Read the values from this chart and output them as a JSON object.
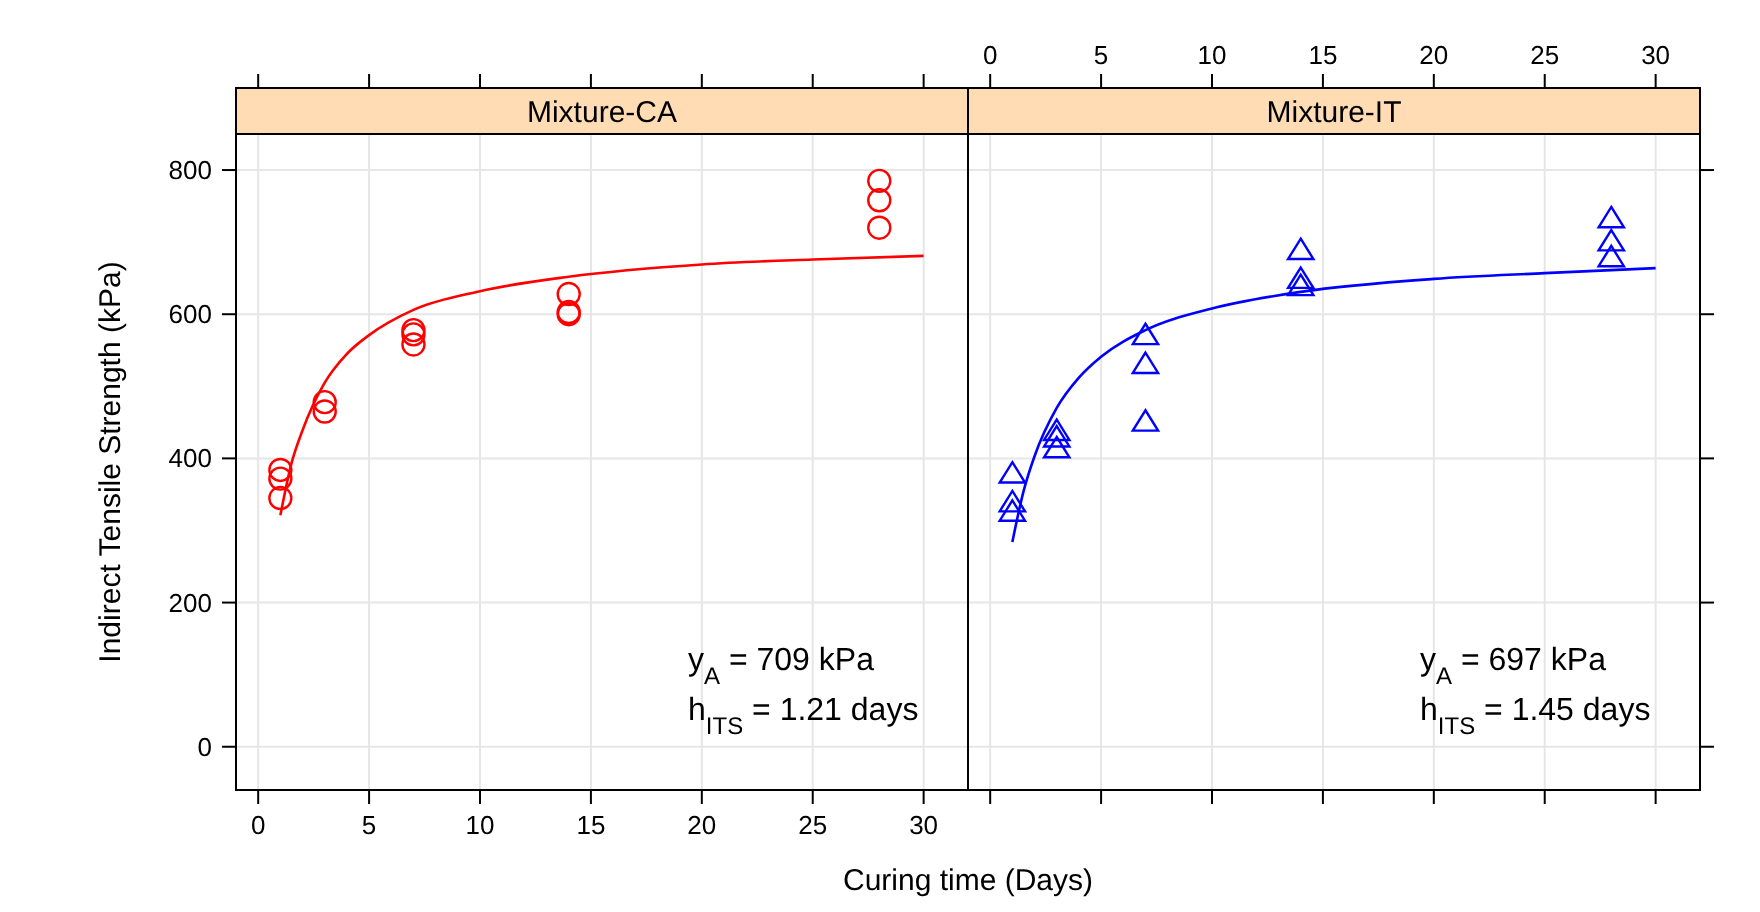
{
  "chart_data": [
    {
      "type": "scatter",
      "title": "Mixture-CA",
      "xlabel": "Curing time (Days)",
      "ylabel": "Indirect Tensile Strength (kPa)",
      "xlim": [
        -1,
        32
      ],
      "xticks": [
        0,
        5,
        10,
        15,
        20,
        25,
        30
      ],
      "ylim": [
        -60,
        850
      ],
      "yticks": [
        0,
        200,
        400,
        600,
        800
      ],
      "grid": true,
      "tick_labels": "xy",
      "series": [
        {
          "marker": "circle",
          "color": "#ff0000",
          "x": [
            1,
            1,
            1,
            3,
            3,
            7,
            7,
            7,
            14,
            14,
            14,
            28,
            28,
            28
          ],
          "values": [
            384,
            372,
            345,
            478,
            465,
            578,
            572,
            558,
            628,
            603,
            600,
            785,
            758,
            720
          ]
        },
        {
          "type": "line",
          "marker": "none",
          "color": "#ff0000",
          "x": [
            1,
            1.5,
            2,
            3,
            4,
            5,
            7,
            10,
            14,
            20,
            25,
            30
          ],
          "values": [
            321,
            393,
            439,
            505,
            545,
            571,
            606,
            632,
            652,
            669,
            676,
            681
          ]
        }
      ],
      "annotations": [
        "y$_{A}$ = 709 kPa",
        "h$_{ITS}$ = 1.21 days"
      ]
    },
    {
      "type": "scatter",
      "title": "Mixture-IT",
      "xlim": [
        -1,
        32
      ],
      "xticks": [
        0,
        5,
        10,
        15,
        20,
        25,
        30
      ],
      "ylim": [
        -60,
        850
      ],
      "yticks": [
        0,
        200,
        400,
        600,
        800
      ],
      "grid": true,
      "tick_labels": "x",
      "series": [
        {
          "marker": "triangle",
          "color": "#0000ff",
          "x": [
            1,
            1,
            1,
            3,
            3,
            3,
            7,
            7,
            7,
            14,
            14,
            14,
            28,
            28,
            28
          ],
          "values": [
            378,
            338,
            325,
            437,
            428,
            413,
            570,
            530,
            450,
            688,
            648,
            638,
            732,
            700,
            678
          ]
        },
        {
          "type": "line",
          "marker": "none",
          "color": "#0000ff",
          "x": [
            1,
            1.5,
            2,
            3,
            4,
            5,
            7,
            10,
            14,
            20,
            25,
            30
          ],
          "values": [
            284,
            354,
            403,
            470,
            512,
            541,
            578,
            608,
            631,
            649,
            657,
            664
          ]
        }
      ],
      "annotations": [
        "y$_{A}$ = 697 kPa",
        "h$_{ITS}$ = 1.45 days"
      ]
    }
  ]
}
